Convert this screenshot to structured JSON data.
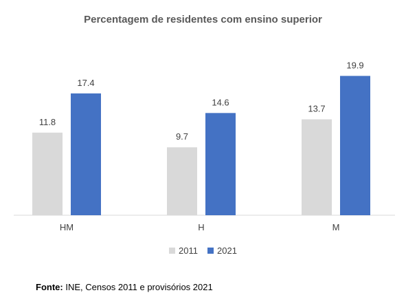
{
  "chart_data": {
    "type": "bar",
    "title": "Percentagem de residentes com ensino superior",
    "categories": [
      "HM",
      "H",
      "M"
    ],
    "series": [
      {
        "name": "2011",
        "color": "#d9d9d9",
        "values": [
          11.8,
          9.7,
          13.7
        ]
      },
      {
        "name": "2021",
        "color": "#4472c4",
        "values": [
          17.4,
          14.6,
          19.9
        ]
      }
    ],
    "ylim": [
      0,
      22
    ],
    "grid": false,
    "legend": "bottom"
  },
  "source": {
    "label": "Fonte:",
    "text": " INE, Censos 2011 e provisórios 2021"
  }
}
